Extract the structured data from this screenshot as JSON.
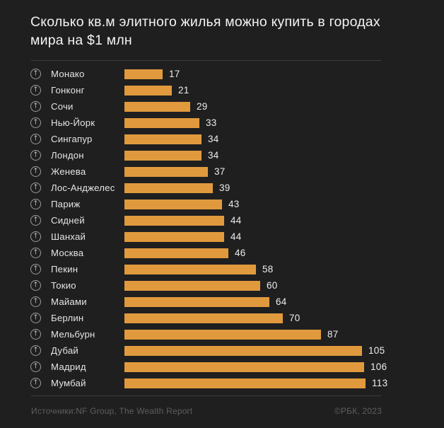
{
  "title_lines": [
    "Сколько кв.м элитного жилья можно купить в городах",
    "мира на $1 млн"
  ],
  "chart_data": {
    "type": "bar",
    "orientation": "horizontal",
    "title": "Сколько кв.м элитного жилья можно купить в городах мира на $1 млн",
    "categories": [
      "Монако",
      "Гонконг",
      "Сочи",
      "Нью-Йорк",
      "Сингапур",
      "Лондон",
      "Женева",
      "Лос-Анджелес",
      "Париж",
      "Сидней",
      "Шанхай",
      "Москва",
      "Пекин",
      "Токио",
      "Майами",
      "Берлин",
      "Мельбурн",
      "Дубай",
      "Мадрид",
      "Мумбай"
    ],
    "values": [
      17,
      21,
      29,
      33,
      34,
      34,
      37,
      39,
      43,
      44,
      44,
      46,
      58,
      60,
      64,
      70,
      87,
      105,
      106,
      113
    ],
    "xlabel": "",
    "ylabel": "",
    "xlim": [
      0,
      113
    ],
    "grid": false,
    "legend": false,
    "value_labels_shown": true,
    "bar_color": "#E09A3D"
  },
  "icons": {
    "row_marker_name": "arrow-up-circle-icon",
    "row_marker_glyph": "↑"
  },
  "footer": {
    "sources": "Источники:NF Group, The Wealth Report",
    "copyright": "©РБК, 2023"
  },
  "colors": {
    "background": "#1F1F20",
    "bar": "#E09A3D",
    "title_text": "#F3F3F3",
    "label_text": "#E4E4E4",
    "value_text": "#ECECEC",
    "divider": "#3C3C3C",
    "footer_text": "#5E5E5E",
    "icon": "#9C9C9C",
    "icon_glyph": "#B8B8B8"
  }
}
